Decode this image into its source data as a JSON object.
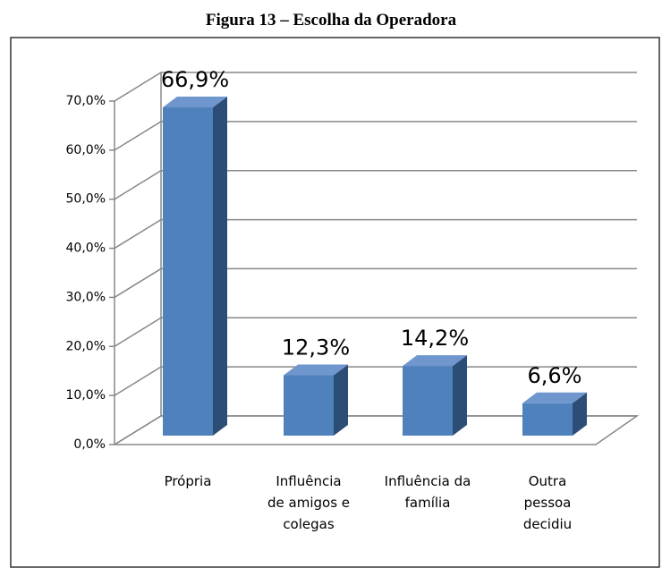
{
  "chart_data": {
    "type": "bar3d",
    "title": "Figura 13 – Escolha da Operadora",
    "categories": [
      "Própria",
      "Influência\nde amigos e\ncolegas",
      "Influência da\nfamília",
      "Outra\npessoa\ndecidiu"
    ],
    "values": [
      66.9,
      12.3,
      14.2,
      6.6
    ],
    "value_labels": [
      "66,9%",
      "12,3%",
      "14,2%",
      "6,6%"
    ],
    "color": "#4f81bd",
    "ylim": [
      0,
      70
    ],
    "yticks": [
      {
        "value": 0,
        "label": "0,0%"
      },
      {
        "value": 10,
        "label": "10,0%"
      },
      {
        "value": 20,
        "label": "20,0%"
      },
      {
        "value": 30,
        "label": "30,0%"
      },
      {
        "value": 40,
        "label": "40,0%"
      },
      {
        "value": 50,
        "label": "50,0%"
      },
      {
        "value": 60,
        "label": "60,0%"
      },
      {
        "value": 70,
        "label": "70,0%"
      }
    ],
    "grid": true
  }
}
